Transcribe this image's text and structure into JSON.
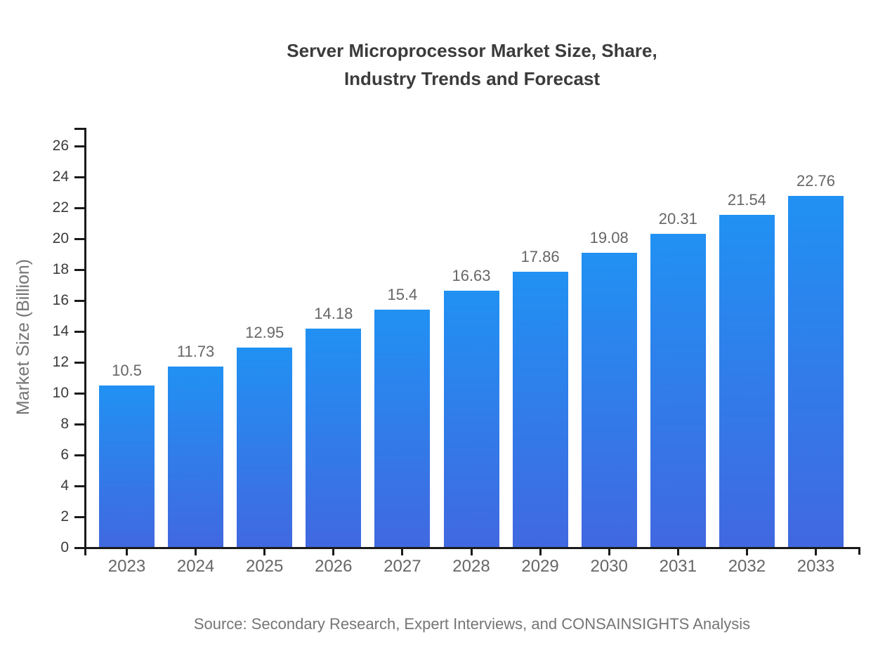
{
  "title": {
    "line1": "Server Microprocessor Market Size, Share,",
    "line2": "Industry Trends and Forecast"
  },
  "source": "Source: Secondary Research, Expert Interviews, and CONSAINSIGHTS Analysis",
  "chart_data": {
    "type": "bar",
    "title": "Server Microprocessor Market Size, Share, Industry Trends and Forecast",
    "categories": [
      "2023",
      "2024",
      "2025",
      "2026",
      "2027",
      "2028",
      "2029",
      "2030",
      "2031",
      "2032",
      "2033"
    ],
    "values": [
      10.5,
      11.73,
      12.95,
      14.18,
      15.4,
      16.63,
      17.86,
      19.08,
      20.31,
      21.54,
      22.76
    ],
    "value_labels": [
      "10.5",
      "11.73",
      "12.95",
      "14.18",
      "15.4",
      "16.63",
      "17.86",
      "19.08",
      "20.31",
      "21.54",
      "22.76"
    ],
    "xlabel": "",
    "ylabel": "Market Size (Billion)",
    "ylim": [
      0,
      27.2
    ],
    "yticks": [
      0,
      2,
      4,
      6,
      8,
      10,
      12,
      14,
      16,
      18,
      20,
      22,
      24,
      26
    ],
    "grid": false,
    "legend": false,
    "bar_color_top": "#2191f3",
    "bar_color_bottom": "#4168e0",
    "axis_color": "#1a1a1a",
    "ytick_label_color": "#3a3a3a",
    "xtick_label_color": "#666666",
    "value_label_color": "#666666",
    "title_color": "#3b3b3b",
    "muted_text_color": "#757575"
  }
}
